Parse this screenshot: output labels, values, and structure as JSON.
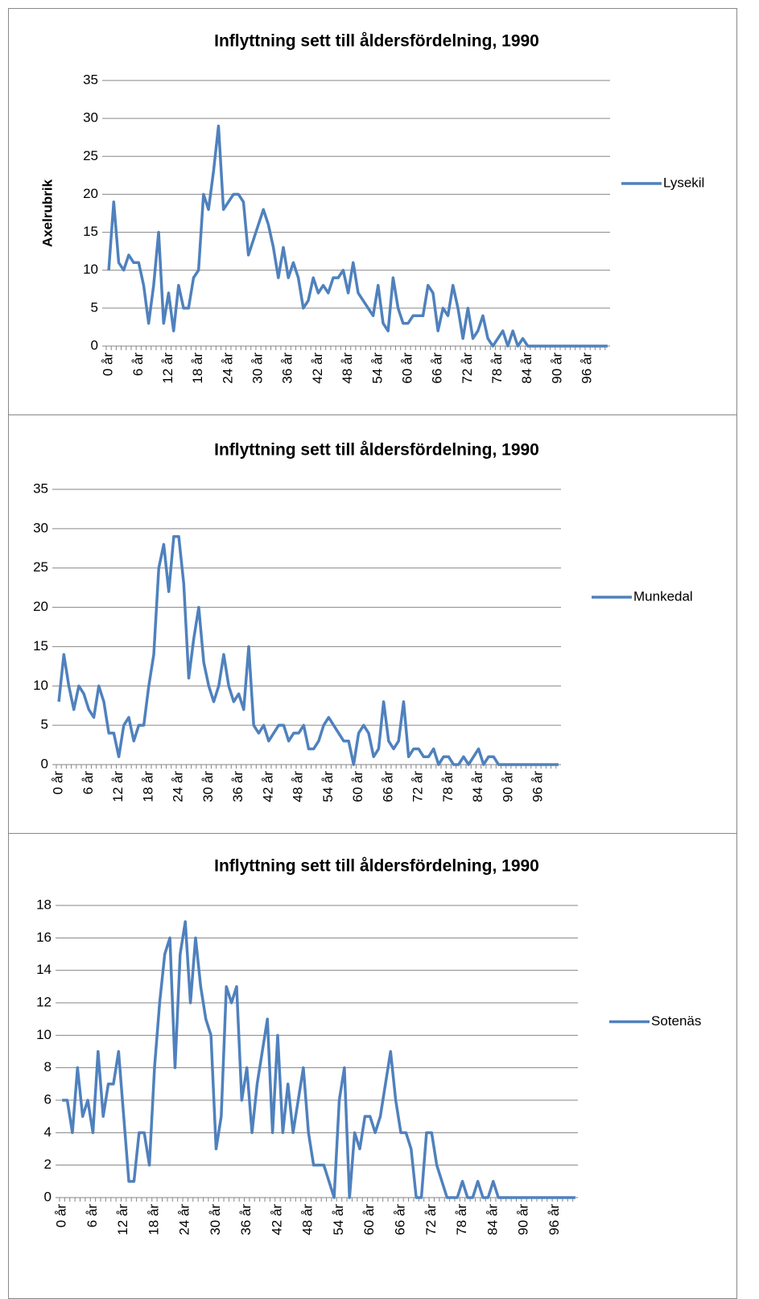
{
  "chart_data": [
    {
      "type": "line",
      "title": "Inflyttning sett till åldersfördelning, 1990",
      "y_label": "Axelrubrik",
      "categories": [
        "0 år",
        null,
        null,
        null,
        null,
        null,
        "6 år",
        null,
        null,
        null,
        null,
        null,
        "12 år",
        null,
        null,
        null,
        null,
        null,
        "18 år",
        null,
        null,
        null,
        null,
        null,
        "24 år",
        null,
        null,
        null,
        null,
        null,
        "30 år",
        null,
        null,
        null,
        null,
        null,
        "36 år",
        null,
        null,
        null,
        null,
        null,
        "42 år",
        null,
        null,
        null,
        null,
        null,
        "48 år",
        null,
        null,
        null,
        null,
        null,
        "54 år",
        null,
        null,
        null,
        null,
        null,
        "60 år",
        null,
        null,
        null,
        null,
        null,
        "66 år",
        null,
        null,
        null,
        null,
        null,
        "72 år",
        null,
        null,
        null,
        null,
        null,
        "78 år",
        null,
        null,
        null,
        null,
        null,
        "84 år",
        null,
        null,
        null,
        null,
        null,
        "90 år",
        null,
        null,
        null,
        null,
        null,
        "96 år",
        null,
        null,
        null,
        null
      ],
      "series": [
        {
          "name": "Lysekil",
          "color": "#4f81bd",
          "values": [
            10,
            19,
            11,
            10,
            12,
            11,
            11,
            8,
            3,
            8,
            15,
            3,
            7,
            2,
            8,
            5,
            5,
            9,
            10,
            20,
            18,
            23,
            29,
            18,
            19,
            20,
            20,
            19,
            12,
            14,
            16,
            18,
            16,
            13,
            9,
            13,
            9,
            11,
            9,
            5,
            6,
            9,
            7,
            8,
            7,
            9,
            9,
            10,
            7,
            11,
            7,
            6,
            5,
            4,
            8,
            3,
            2,
            9,
            5,
            3,
            3,
            4,
            4,
            4,
            8,
            7,
            2,
            5,
            4,
            8,
            5,
            1,
            5,
            1,
            2,
            4,
            1,
            0,
            1,
            2,
            0,
            2,
            0,
            1,
            0,
            0,
            0,
            0,
            0,
            0,
            0,
            0,
            0,
            0,
            0,
            0,
            0,
            0,
            0,
            0,
            0
          ]
        }
      ],
      "ylim": [
        0,
        35
      ],
      "yticks": [
        0,
        5,
        10,
        15,
        20,
        25,
        30,
        35
      ],
      "grid": true,
      "legend": "right"
    },
    {
      "type": "line",
      "title": "Inflyttning sett till åldersfördelning, 1990",
      "categories": [
        "0 år",
        null,
        null,
        null,
        null,
        null,
        "6 år",
        null,
        null,
        null,
        null,
        null,
        "12 år",
        null,
        null,
        null,
        null,
        null,
        "18 år",
        null,
        null,
        null,
        null,
        null,
        "24 år",
        null,
        null,
        null,
        null,
        null,
        "30 år",
        null,
        null,
        null,
        null,
        null,
        "36 år",
        null,
        null,
        null,
        null,
        null,
        "42 år",
        null,
        null,
        null,
        null,
        null,
        "48 år",
        null,
        null,
        null,
        null,
        null,
        "54 år",
        null,
        null,
        null,
        null,
        null,
        "60 år",
        null,
        null,
        null,
        null,
        null,
        "66 år",
        null,
        null,
        null,
        null,
        null,
        "72 år",
        null,
        null,
        null,
        null,
        null,
        "78 år",
        null,
        null,
        null,
        null,
        null,
        "84 år",
        null,
        null,
        null,
        null,
        null,
        "90 år",
        null,
        null,
        null,
        null,
        null,
        "96 år",
        null,
        null,
        null,
        null
      ],
      "series": [
        {
          "name": "Munkedal",
          "color": "#4f81bd",
          "values": [
            8,
            14,
            10,
            7,
            10,
            9,
            7,
            6,
            10,
            8,
            4,
            4,
            1,
            5,
            6,
            3,
            5,
            5,
            10,
            14,
            25,
            28,
            22,
            29,
            29,
            23,
            11,
            16,
            20,
            13,
            10,
            8,
            10,
            14,
            10,
            8,
            9,
            7,
            15,
            5,
            4,
            5,
            3,
            4,
            5,
            5,
            3,
            4,
            4,
            5,
            2,
            2,
            3,
            5,
            6,
            5,
            4,
            3,
            3,
            0,
            4,
            5,
            4,
            1,
            2,
            8,
            3,
            2,
            3,
            8,
            1,
            2,
            2,
            1,
            1,
            2,
            0,
            1,
            1,
            0,
            0,
            1,
            0,
            1,
            2,
            0,
            1,
            1,
            0,
            0,
            0,
            0,
            0,
            0,
            0,
            0,
            0,
            0,
            0,
            0,
            0
          ]
        }
      ],
      "ylim": [
        0,
        35
      ],
      "yticks": [
        0,
        5,
        10,
        15,
        20,
        25,
        30,
        35
      ],
      "grid": true,
      "legend": "right"
    },
    {
      "type": "line",
      "title": "Inflyttning sett till åldersfördelning, 1990",
      "categories": [
        "0 år",
        null,
        null,
        null,
        null,
        null,
        "6 år",
        null,
        null,
        null,
        null,
        null,
        "12 år",
        null,
        null,
        null,
        null,
        null,
        "18 år",
        null,
        null,
        null,
        null,
        null,
        "24 år",
        null,
        null,
        null,
        null,
        null,
        "30 år",
        null,
        null,
        null,
        null,
        null,
        "36 år",
        null,
        null,
        null,
        null,
        null,
        "42 år",
        null,
        null,
        null,
        null,
        null,
        "48 år",
        null,
        null,
        null,
        null,
        null,
        "54 år",
        null,
        null,
        null,
        null,
        null,
        "60 år",
        null,
        null,
        null,
        null,
        null,
        "66 år",
        null,
        null,
        null,
        null,
        null,
        "72 år",
        null,
        null,
        null,
        null,
        null,
        "78 år",
        null,
        null,
        null,
        null,
        null,
        "84 år",
        null,
        null,
        null,
        null,
        null,
        "90 år",
        null,
        null,
        null,
        null,
        null,
        "96 år",
        null,
        null,
        null,
        null
      ],
      "series": [
        {
          "name": "Sotenäs",
          "color": "#4f81bd",
          "values": [
            6,
            6,
            4,
            8,
            5,
            6,
            4,
            9,
            5,
            7,
            7,
            9,
            5,
            1,
            1,
            4,
            4,
            2,
            8,
            12,
            15,
            16,
            8,
            15,
            17,
            12,
            16,
            13,
            11,
            10,
            3,
            5,
            13,
            12,
            13,
            6,
            8,
            4,
            7,
            9,
            11,
            4,
            10,
            4,
            7,
            4,
            6,
            8,
            4,
            2,
            2,
            2,
            1,
            0,
            6,
            8,
            0,
            4,
            3,
            5,
            5,
            4,
            5,
            7,
            9,
            6,
            4,
            4,
            3,
            0,
            0,
            4,
            4,
            2,
            1,
            0,
            0,
            0,
            1,
            0,
            0,
            1,
            0,
            0,
            1,
            0,
            0,
            0,
            0,
            0,
            0,
            0,
            0,
            0,
            0,
            0,
            0,
            0,
            0,
            0,
            0
          ]
        }
      ],
      "ylim": [
        0,
        18
      ],
      "yticks": [
        0,
        2,
        4,
        6,
        8,
        10,
        12,
        14,
        16,
        18
      ],
      "grid": true,
      "legend": "right"
    }
  ]
}
